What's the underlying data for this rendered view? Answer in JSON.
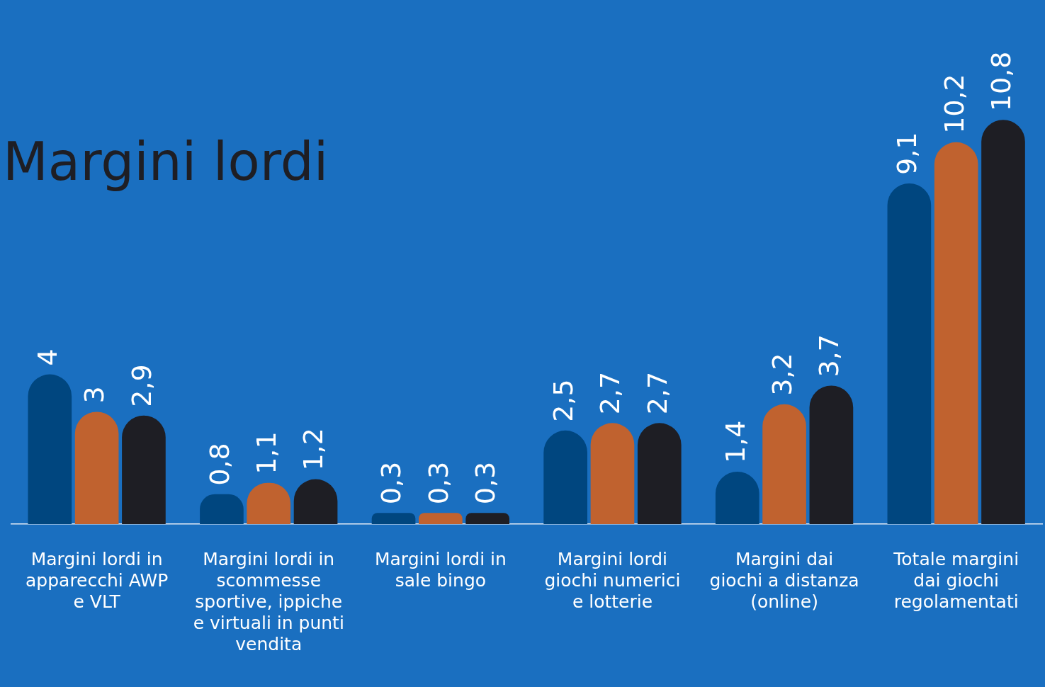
{
  "chart_data": {
    "type": "bar",
    "title": "Margini lordi",
    "categories": [
      "Margini lordi in apparecchi AWP e VLT",
      "Margini lordi in scommesse sportive, ippiche e virtuali in punti vendita",
      "Margini lordi in sale bingo",
      "Margini lordi giochi numerici e lotterie",
      "Margini dai giochi a distanza (online)",
      "Totale margini dai giochi regolamentati"
    ],
    "series": [
      {
        "color": "#00467f",
        "values": [
          4,
          0.8,
          0.3,
          2.5,
          1.4,
          9.1
        ],
        "value_labels": [
          "4",
          "0,8",
          "0,3",
          "2,5",
          "1,4",
          "9,1"
        ]
      },
      {
        "color": "#c0622f",
        "values": [
          3,
          1.1,
          0.3,
          2.7,
          3.2,
          10.2
        ],
        "value_labels": [
          "3",
          "1,1",
          "0,3",
          "2,7",
          "3,2",
          "10,2"
        ]
      },
      {
        "color": "#1e1e24",
        "values": [
          2.9,
          1.2,
          0.3,
          2.7,
          3.7,
          10.8
        ],
        "value_labels": [
          "2,9",
          "1,2",
          "0,3",
          "2,7",
          "3,7",
          "10,8"
        ]
      }
    ],
    "grid": false,
    "legend": false
  }
}
